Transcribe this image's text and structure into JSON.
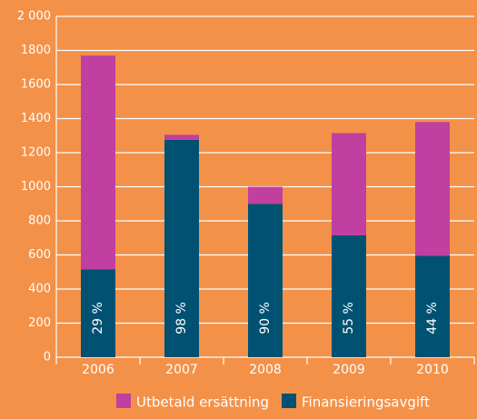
{
  "chart_data": {
    "type": "stacked-bar",
    "categories": [
      "2006",
      "2007",
      "2008",
      "2009",
      "2010"
    ],
    "series": [
      {
        "name": "Finansieringsavgift",
        "color": "#005172",
        "values": [
          515,
          1275,
          900,
          715,
          595
        ]
      },
      {
        "name": "Utbetald ersättning",
        "color": "#c03fa0",
        "values": [
          1255,
          30,
          100,
          600,
          785
        ]
      }
    ],
    "annotations": [
      "29 %",
      "98 %",
      "90 %",
      "55 %",
      "44 %"
    ],
    "ylim": [
      0,
      2000
    ],
    "yticks": [
      0,
      200,
      400,
      600,
      800,
      1000,
      1200,
      1400,
      1600,
      1800,
      {
        "value": 2000,
        "label": "2 000"
      }
    ],
    "grid": true,
    "legend": "bottom"
  }
}
